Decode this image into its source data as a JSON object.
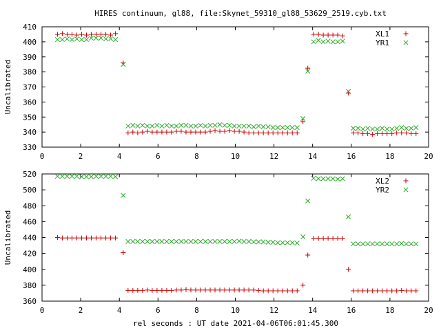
{
  "title": "HIRES continuum, gl88, file:Skynet_59310_gl88_53629_2519.cyb.txt",
  "xlabel": "rel seconds : UT date 2021-04-06T06:01:45.300",
  "colors": {
    "xl": "#cc0000",
    "yr": "#22aa22",
    "axis": "#000000"
  },
  "chart_data": [
    {
      "type": "scatter",
      "ylabel": "Uncalibrated",
      "xlim": [
        0,
        20
      ],
      "ylim": [
        330,
        410
      ],
      "xticks": [
        "0",
        "2",
        "4",
        "6",
        "8",
        "10",
        "12",
        "14",
        "16",
        "18",
        "20"
      ],
      "yticks": [
        "330",
        "340",
        "350",
        "360",
        "370",
        "380",
        "390",
        "400",
        "410"
      ],
      "grid": false,
      "legend": "top-right",
      "series": [
        {
          "name": "XL1",
          "marker": "plus",
          "x": [
            0.8,
            1.05,
            1.3,
            1.55,
            1.8,
            2.05,
            2.3,
            2.55,
            2.8,
            3.05,
            3.3,
            3.55,
            3.8,
            4.2,
            4.45,
            4.7,
            4.95,
            5.2,
            5.45,
            5.7,
            5.95,
            6.2,
            6.45,
            6.7,
            6.95,
            7.2,
            7.45,
            7.7,
            7.95,
            8.2,
            8.45,
            8.7,
            8.95,
            9.2,
            9.45,
            9.7,
            9.95,
            10.2,
            10.45,
            10.7,
            10.95,
            11.2,
            11.45,
            11.7,
            11.95,
            12.2,
            12.45,
            12.7,
            12.95,
            13.2,
            13.5,
            13.75,
            14.05,
            14.3,
            14.55,
            14.8,
            15.05,
            15.3,
            15.55,
            15.85,
            16.1,
            16.35,
            16.6,
            16.85,
            17.1,
            17.35,
            17.6,
            17.85,
            18.1,
            18.35,
            18.6,
            18.85,
            19.1,
            19.35
          ],
          "y": [
            405,
            405.5,
            405,
            405,
            404.5,
            405,
            404.5,
            405,
            405,
            405,
            405,
            404.5,
            405.5,
            386,
            339.5,
            340,
            339.5,
            340,
            340.5,
            340,
            340,
            340,
            340,
            340,
            340.5,
            340.5,
            340,
            340,
            340,
            340,
            340,
            340.5,
            341,
            340.5,
            340.5,
            341,
            340.5,
            340.5,
            340,
            339.5,
            339.5,
            339.5,
            339.5,
            339.5,
            339.5,
            339.5,
            339.5,
            339.5,
            339.5,
            339.5,
            347,
            382.5,
            405,
            405,
            404.5,
            404.5,
            404.5,
            404.5,
            404,
            366,
            339.5,
            339.5,
            339,
            339,
            338.5,
            339,
            339,
            339,
            339,
            339.5,
            339.5,
            339.5,
            339,
            339
          ]
        },
        {
          "name": "YR1",
          "marker": "cross",
          "x": [
            0.8,
            1.05,
            1.3,
            1.55,
            1.8,
            2.05,
            2.3,
            2.55,
            2.8,
            3.05,
            3.3,
            3.55,
            3.8,
            4.2,
            4.45,
            4.7,
            4.95,
            5.2,
            5.45,
            5.7,
            5.95,
            6.2,
            6.45,
            6.7,
            6.95,
            7.2,
            7.45,
            7.7,
            7.95,
            8.2,
            8.45,
            8.7,
            8.95,
            9.2,
            9.45,
            9.7,
            9.95,
            10.2,
            10.45,
            10.7,
            10.95,
            11.2,
            11.45,
            11.7,
            11.95,
            12.2,
            12.45,
            12.7,
            12.95,
            13.2,
            13.5,
            13.75,
            14.05,
            14.3,
            14.55,
            14.8,
            15.05,
            15.3,
            15.55,
            15.85,
            16.1,
            16.35,
            16.6,
            16.85,
            17.1,
            17.35,
            17.6,
            17.85,
            18.1,
            18.35,
            18.6,
            18.85,
            19.1,
            19.35
          ],
          "y": [
            401.5,
            401.5,
            402,
            401.5,
            402,
            401.5,
            401.5,
            402.5,
            402.5,
            402.5,
            402,
            402,
            401.5,
            385,
            344,
            344.5,
            344,
            344.5,
            344,
            344,
            344.5,
            344,
            344.5,
            344,
            344,
            344.5,
            344.5,
            344,
            344,
            344.5,
            344,
            344.5,
            344.5,
            345,
            344.5,
            344.5,
            344,
            344,
            344,
            344,
            343.5,
            344,
            343.5,
            343.5,
            343,
            343,
            343,
            343,
            343,
            343,
            349,
            380.5,
            400,
            401,
            400,
            400.5,
            400,
            400,
            400.5,
            367,
            342.5,
            342.5,
            342,
            342.5,
            342,
            342,
            342.5,
            342,
            342,
            342.5,
            343,
            342.5,
            342.5,
            343
          ]
        }
      ]
    },
    {
      "type": "scatter",
      "ylabel": "Uncalibrated",
      "xlim": [
        0,
        20
      ],
      "ylim": [
        360,
        520
      ],
      "xticks": [
        "0",
        "2",
        "4",
        "6",
        "8",
        "10",
        "12",
        "14",
        "16",
        "18",
        "20"
      ],
      "yticks": [
        "360",
        "380",
        "400",
        "420",
        "440",
        "460",
        "480",
        "500",
        "520"
      ],
      "grid": false,
      "legend": "top-right",
      "series": [
        {
          "name": "XL2",
          "marker": "plus",
          "x": [
            0.8,
            1.05,
            1.3,
            1.55,
            1.8,
            2.05,
            2.3,
            2.55,
            2.8,
            3.05,
            3.3,
            3.55,
            3.8,
            4.2,
            4.45,
            4.7,
            4.95,
            5.2,
            5.45,
            5.7,
            5.95,
            6.2,
            6.45,
            6.7,
            6.95,
            7.2,
            7.45,
            7.7,
            7.95,
            8.2,
            8.45,
            8.7,
            8.95,
            9.2,
            9.45,
            9.7,
            9.95,
            10.2,
            10.45,
            10.7,
            10.95,
            11.2,
            11.45,
            11.7,
            11.95,
            12.2,
            12.45,
            12.7,
            12.95,
            13.2,
            13.5,
            13.75,
            14.05,
            14.3,
            14.55,
            14.8,
            15.05,
            15.3,
            15.55,
            15.85,
            16.1,
            16.35,
            16.6,
            16.85,
            17.1,
            17.35,
            17.6,
            17.85,
            18.1,
            18.35,
            18.6,
            18.85,
            19.1,
            19.35
          ],
          "y": [
            440,
            439.5,
            439.5,
            439.5,
            439.5,
            439.5,
            439.5,
            439.5,
            439.5,
            439.5,
            439.5,
            439.5,
            439.5,
            421,
            373.5,
            373.5,
            373.5,
            373.5,
            374,
            373.5,
            373.5,
            373.5,
            373.5,
            373.5,
            374,
            374,
            374.5,
            374,
            374,
            374,
            374,
            374,
            374,
            374,
            374,
            374,
            374,
            374,
            374,
            374,
            374,
            373.5,
            373,
            373,
            373,
            373,
            373,
            373,
            373,
            373,
            380,
            418,
            439,
            439,
            439,
            439,
            439,
            439,
            439,
            400,
            373,
            373,
            373,
            373,
            373,
            373,
            373,
            373,
            373,
            373,
            373.5,
            373,
            373,
            373
          ]
        },
        {
          "name": "YR2",
          "marker": "cross",
          "x": [
            0.8,
            1.05,
            1.3,
            1.55,
            1.8,
            2.05,
            2.3,
            2.55,
            2.8,
            3.05,
            3.3,
            3.55,
            3.8,
            4.2,
            4.45,
            4.7,
            4.95,
            5.2,
            5.45,
            5.7,
            5.95,
            6.2,
            6.45,
            6.7,
            6.95,
            7.2,
            7.45,
            7.7,
            7.95,
            8.2,
            8.45,
            8.7,
            8.95,
            9.2,
            9.45,
            9.7,
            9.95,
            10.2,
            10.45,
            10.7,
            10.95,
            11.2,
            11.45,
            11.7,
            11.95,
            12.2,
            12.45,
            12.7,
            12.95,
            13.2,
            13.5,
            13.75,
            14.05,
            14.3,
            14.55,
            14.8,
            15.05,
            15.3,
            15.55,
            15.85,
            16.1,
            16.35,
            16.6,
            16.85,
            17.1,
            17.35,
            17.6,
            17.85,
            18.1,
            18.35,
            18.6,
            18.85,
            19.1,
            19.35
          ],
          "y": [
            517,
            517,
            517,
            517,
            517,
            516.5,
            516.5,
            516.5,
            517,
            517,
            517,
            517,
            516.5,
            493,
            435,
            435,
            435,
            435,
            435,
            435,
            435,
            435,
            435,
            435,
            435,
            435,
            435,
            435,
            435,
            435,
            435,
            435,
            435,
            435,
            435,
            435,
            435,
            435.5,
            435,
            435,
            434.5,
            434.5,
            434.5,
            434,
            434,
            433.5,
            433.5,
            433.5,
            433.5,
            433,
            441,
            486,
            514.5,
            514,
            514,
            514,
            514,
            513.5,
            514,
            466,
            432,
            432,
            432,
            432,
            432,
            432,
            432,
            432,
            432,
            432,
            432.5,
            432,
            432,
            432
          ]
        }
      ]
    }
  ]
}
